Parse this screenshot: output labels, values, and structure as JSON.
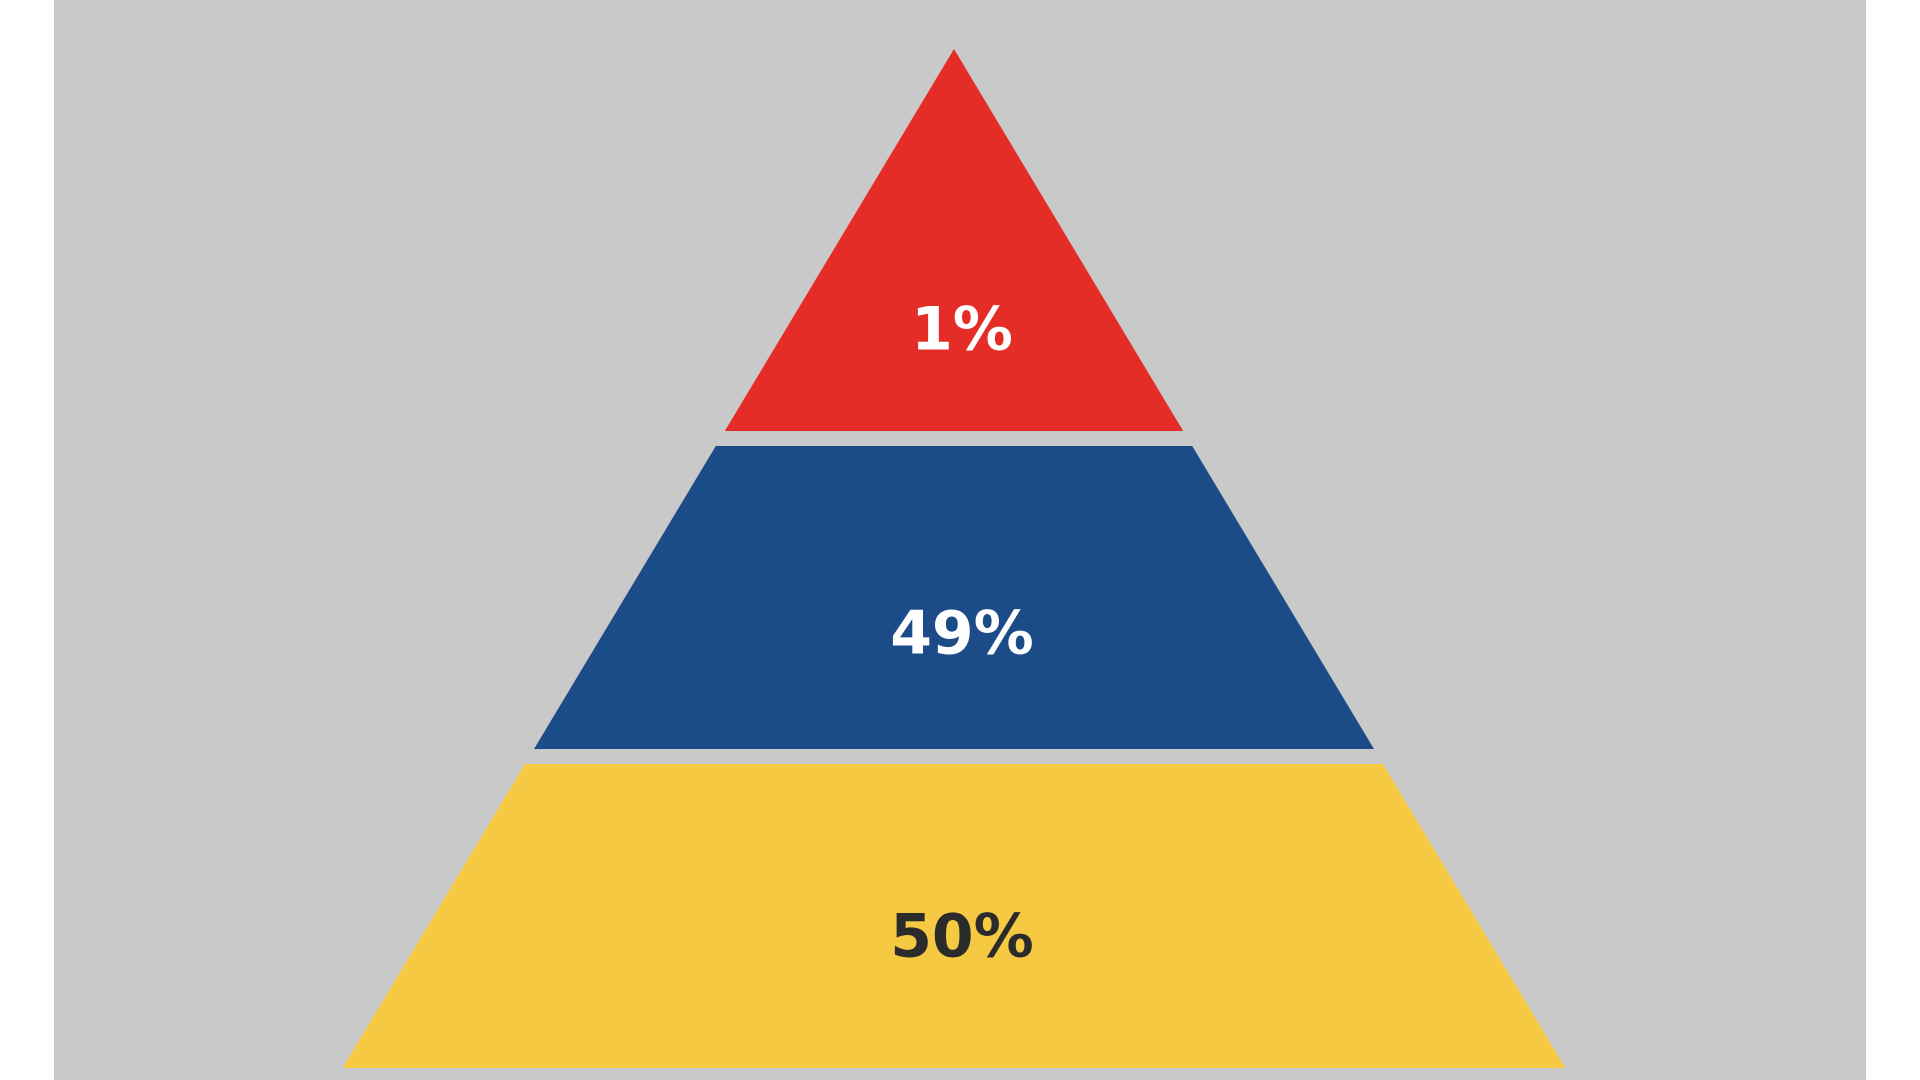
{
  "chart_data": {
    "type": "pyramid",
    "values": [
      1,
      49,
      50
    ],
    "value_labels": [
      "1%",
      "49%",
      "50%"
    ],
    "colors": [
      "#e52d27",
      "#1b4c87",
      "#f5ca42"
    ],
    "label_colors": [
      "#ffffff",
      "#ffffff",
      "#2b2b2b"
    ]
  }
}
